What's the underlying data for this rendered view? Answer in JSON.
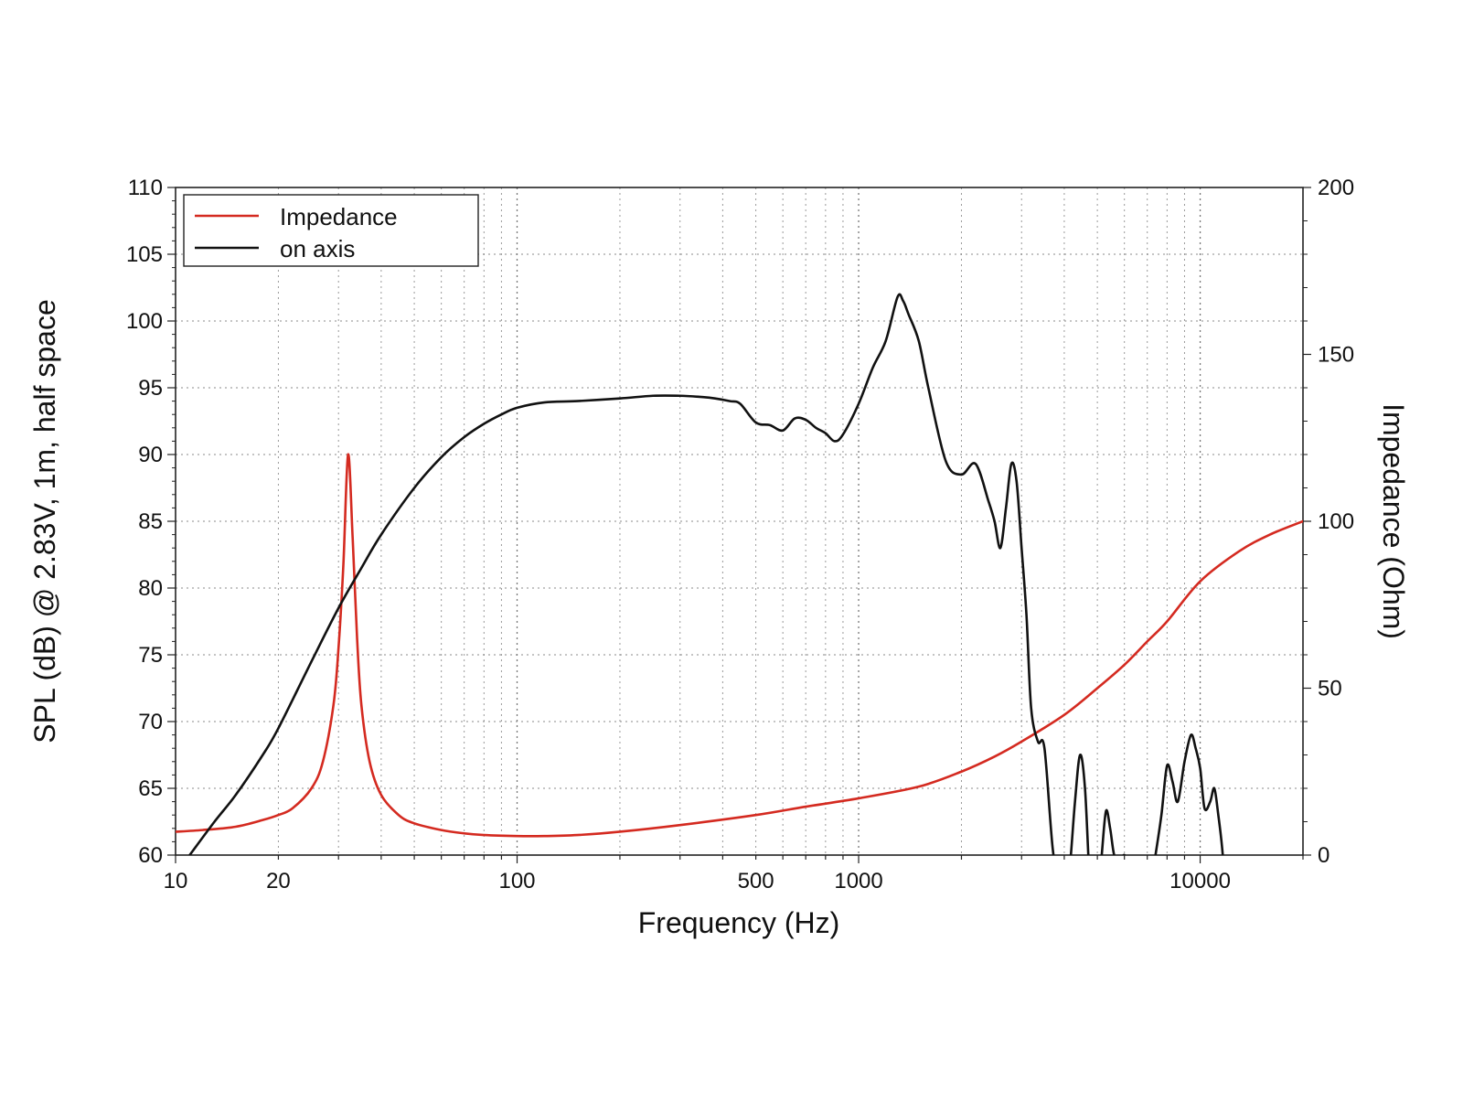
{
  "chart_data": {
    "type": "line",
    "title": "",
    "xlabel": "Frequency (Hz)",
    "ylabel": "SPL (dB) @ 2.83V, 1m, half space",
    "y2label": "Impedance (Ohm)",
    "x_scale": "log",
    "xlim": [
      10,
      20000
    ],
    "ylim": [
      60,
      110
    ],
    "y2lim": [
      0,
      200
    ],
    "x_tick_labels": [
      {
        "value": 10,
        "label": "10"
      },
      {
        "value": 20,
        "label": "20"
      },
      {
        "value": 100,
        "label": "100"
      },
      {
        "value": 500,
        "label": "500"
      },
      {
        "value": 1000,
        "label": "1000"
      },
      {
        "value": 10000,
        "label": "10000"
      }
    ],
    "y_ticks": [
      60,
      65,
      70,
      75,
      80,
      85,
      90,
      95,
      100,
      105,
      110
    ],
    "y2_ticks": [
      0,
      50,
      100,
      150,
      200
    ],
    "grid": true,
    "legend_position": "top-left",
    "series": [
      {
        "name": "Impedance",
        "axis": "right",
        "color": "#d42a20",
        "x": [
          10,
          12,
          15,
          18,
          20,
          22,
          25,
          27,
          29,
          30,
          31,
          32,
          33,
          34,
          35,
          37,
          40,
          45,
          50,
          60,
          70,
          80,
          100,
          120,
          150,
          200,
          300,
          500,
          700,
          1000,
          1500,
          2000,
          2500,
          3000,
          4000,
          5000,
          6000,
          7000,
          8000,
          10000,
          13000,
          16000,
          20000
        ],
        "y": [
          7,
          7.5,
          8.5,
          10.5,
          12,
          14,
          20,
          28,
          45,
          62,
          87,
          120,
          95,
          65,
          45,
          28,
          18,
          12,
          9.5,
          7.5,
          6.5,
          6,
          5.7,
          5.7,
          6,
          7,
          9,
          12,
          14.5,
          17,
          20.5,
          25,
          29.5,
          34,
          42,
          50,
          57,
          64,
          70,
          82,
          91,
          96,
          100
        ]
      },
      {
        "name": "on axis",
        "axis": "left",
        "color": "#111111",
        "x": [
          11,
          13,
          15,
          18,
          20,
          25,
          30,
          35,
          40,
          50,
          60,
          70,
          80,
          90,
          100,
          120,
          150,
          200,
          250,
          300,
          350,
          380,
          420,
          450,
          500,
          550,
          600,
          650,
          700,
          750,
          800,
          850,
          900,
          1000,
          1100,
          1200,
          1300,
          1350,
          1400,
          1500,
          1600,
          1800,
          2000,
          2200,
          2400,
          2500,
          2600,
          2700,
          2800,
          2900,
          3000,
          3100,
          3200,
          3350,
          3500,
          3700,
          3900,
          4000,
          4150,
          4300,
          4450,
          4600,
          4750,
          4900,
          5000,
          5150,
          5300,
          5450,
          5600,
          5800,
          6000,
          6200,
          6400,
          6700,
          7000,
          7400,
          7700,
          8000,
          8300,
          8600,
          9000,
          9400,
          9700,
          10000,
          10300,
          10700,
          11000,
          11300,
          11600,
          12000
        ],
        "y": [
          60,
          62.5,
          64.5,
          67.5,
          69.5,
          74.5,
          78.5,
          81.5,
          84,
          87.5,
          89.8,
          91.3,
          92.3,
          93,
          93.5,
          93.9,
          94,
          94.2,
          94.4,
          94.4,
          94.3,
          94.2,
          94,
          93.8,
          92.4,
          92.2,
          91.8,
          92.7,
          92.6,
          92,
          91.6,
          91,
          91.5,
          93.8,
          96.5,
          98.5,
          101.8,
          101.5,
          100.5,
          98.5,
          95,
          89.5,
          88.5,
          89.3,
          86.5,
          85,
          83,
          86,
          89.3,
          88,
          83,
          78,
          71,
          68.5,
          68,
          60.5,
          57,
          56,
          59,
          64,
          67.5,
          65,
          58,
          55,
          56,
          60,
          63.3,
          62,
          60,
          59.5,
          60,
          59,
          58,
          56.5,
          56,
          60,
          63,
          66.7,
          65.5,
          64,
          67,
          69,
          68,
          66.5,
          63.5,
          64,
          65,
          63,
          60.5,
          56
        ]
      }
    ]
  }
}
